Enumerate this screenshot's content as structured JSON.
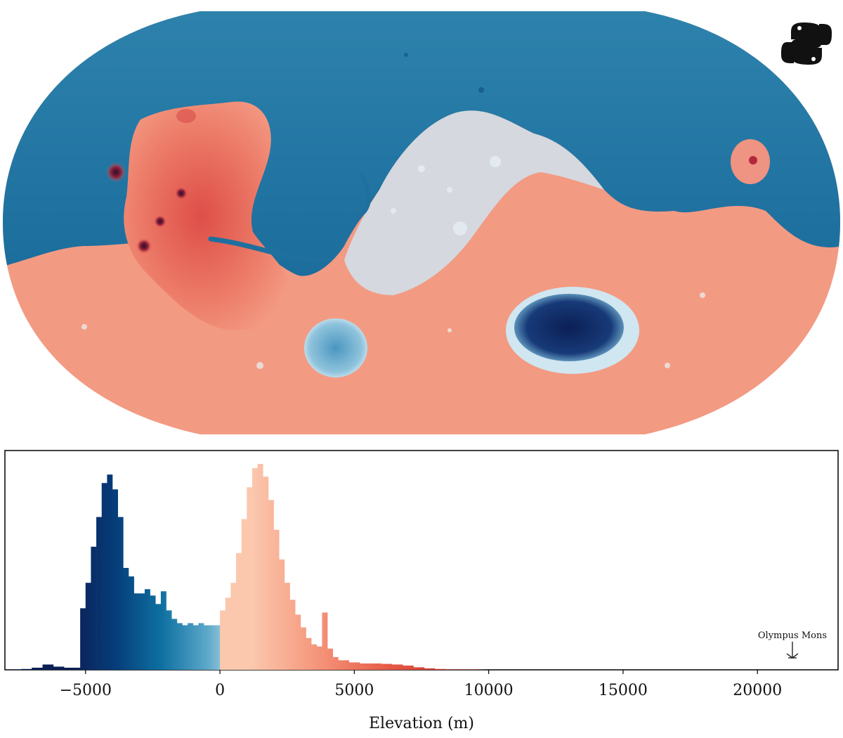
{
  "chart_data": [
    {
      "type": "map",
      "title": "",
      "projection": "Robinson",
      "colormap": "diverging blue-white-red (RdBu_r)",
      "colors": {
        "low": "#0b1f55",
        "mid": "#f3f6f9",
        "high": "#e2453d",
        "ocean": "#1c6fa0",
        "land": "#f39a83"
      }
    },
    {
      "type": "bar",
      "title": "",
      "xlabel": "Elevation (m)",
      "ylabel": "",
      "xlim": [
        -8000,
        23000
      ],
      "x_ticks": [
        -5000,
        0,
        5000,
        10000,
        15000,
        20000
      ],
      "x_tick_labels": [
        "−5000",
        "0",
        "5000",
        "10000",
        "15000",
        "20000"
      ],
      "grid": false,
      "annotations": [
        {
          "text": "Olympus Mons",
          "x": 21300
        }
      ],
      "bins": [
        {
          "x": -7800,
          "y": 0.002
        },
        {
          "x": -7400,
          "y": 0.004
        },
        {
          "x": -7000,
          "y": 0.01
        },
        {
          "x": -6600,
          "y": 0.025
        },
        {
          "x": -6200,
          "y": 0.015
        },
        {
          "x": -5800,
          "y": 0.01
        },
        {
          "x": -5400,
          "y": 0.01
        },
        {
          "x": -5200,
          "y": 0.29
        },
        {
          "x": -5000,
          "y": 0.41
        },
        {
          "x": -4800,
          "y": 0.58
        },
        {
          "x": -4600,
          "y": 0.72
        },
        {
          "x": -4400,
          "y": 0.88
        },
        {
          "x": -4200,
          "y": 0.92
        },
        {
          "x": -4000,
          "y": 0.85
        },
        {
          "x": -3800,
          "y": 0.72
        },
        {
          "x": -3600,
          "y": 0.48
        },
        {
          "x": -3400,
          "y": 0.44
        },
        {
          "x": -3200,
          "y": 0.36
        },
        {
          "x": -3000,
          "y": 0.36
        },
        {
          "x": -2800,
          "y": 0.38
        },
        {
          "x": -2600,
          "y": 0.35
        },
        {
          "x": -2400,
          "y": 0.31
        },
        {
          "x": -2200,
          "y": 0.37
        },
        {
          "x": -2000,
          "y": 0.28
        },
        {
          "x": -1800,
          "y": 0.24
        },
        {
          "x": -1600,
          "y": 0.22
        },
        {
          "x": -1400,
          "y": 0.21
        },
        {
          "x": -1200,
          "y": 0.22
        },
        {
          "x": -1000,
          "y": 0.21
        },
        {
          "x": -800,
          "y": 0.22
        },
        {
          "x": -600,
          "y": 0.21
        },
        {
          "x": -400,
          "y": 0.21
        },
        {
          "x": -200,
          "y": 0.21
        },
        {
          "x": 0,
          "y": 0.28
        },
        {
          "x": 200,
          "y": 0.34
        },
        {
          "x": 400,
          "y": 0.41
        },
        {
          "x": 600,
          "y": 0.55
        },
        {
          "x": 800,
          "y": 0.71
        },
        {
          "x": 1000,
          "y": 0.86
        },
        {
          "x": 1200,
          "y": 0.95
        },
        {
          "x": 1400,
          "y": 0.97
        },
        {
          "x": 1600,
          "y": 0.91
        },
        {
          "x": 1800,
          "y": 0.8
        },
        {
          "x": 2000,
          "y": 0.66
        },
        {
          "x": 2200,
          "y": 0.52
        },
        {
          "x": 2400,
          "y": 0.41
        },
        {
          "x": 2600,
          "y": 0.33
        },
        {
          "x": 2800,
          "y": 0.26
        },
        {
          "x": 3000,
          "y": 0.2
        },
        {
          "x": 3200,
          "y": 0.15
        },
        {
          "x": 3400,
          "y": 0.12
        },
        {
          "x": 3600,
          "y": 0.11
        },
        {
          "x": 3800,
          "y": 0.27
        },
        {
          "x": 4000,
          "y": 0.1
        },
        {
          "x": 4200,
          "y": 0.06
        },
        {
          "x": 4400,
          "y": 0.045
        },
        {
          "x": 4800,
          "y": 0.035
        },
        {
          "x": 5200,
          "y": 0.03
        },
        {
          "x": 5600,
          "y": 0.03
        },
        {
          "x": 6000,
          "y": 0.028
        },
        {
          "x": 6400,
          "y": 0.025
        },
        {
          "x": 6800,
          "y": 0.02
        },
        {
          "x": 7200,
          "y": 0.012
        },
        {
          "x": 7600,
          "y": 0.007
        },
        {
          "x": 8000,
          "y": 0.004
        },
        {
          "x": 8400,
          "y": 0.002
        },
        {
          "x": 8800,
          "y": 0.0015
        },
        {
          "x": 9600,
          "y": 0.001
        }
      ]
    }
  ]
}
